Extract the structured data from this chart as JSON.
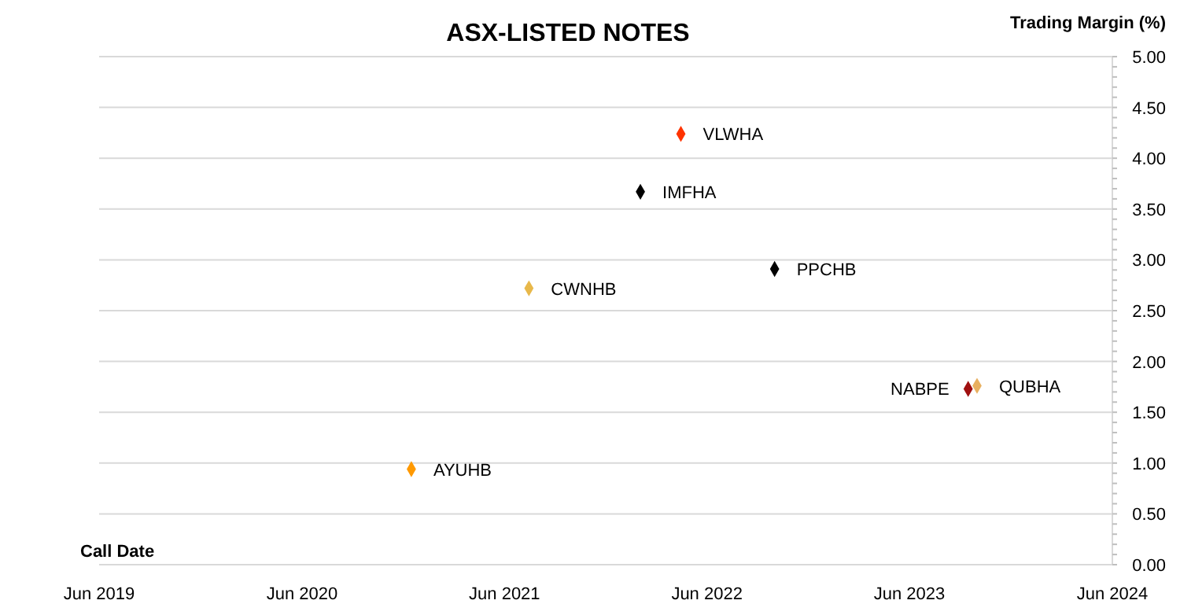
{
  "chart_data": {
    "type": "scatter",
    "title": "ASX-LISTED NOTES",
    "xlabel": "Call Date",
    "ylabel": "Trading Margin (%)",
    "marker": "diamond",
    "grid": "y",
    "xlim": [
      "2019-06",
      "2024-06"
    ],
    "xticks": [
      {
        "value": "2019-06",
        "label": "Jun 2019"
      },
      {
        "value": "2020-06",
        "label": "Jun 2020"
      },
      {
        "value": "2021-06",
        "label": "Jun 2021"
      },
      {
        "value": "2022-06",
        "label": "Jun 2022"
      },
      {
        "value": "2023-06",
        "label": "Jun 2023"
      },
      {
        "value": "2024-06",
        "label": "Jun 2024"
      }
    ],
    "ylim": [
      0,
      5
    ],
    "yticks": [
      {
        "value": 0,
        "label": "0.00"
      },
      {
        "value": 0.5,
        "label": "0.50"
      },
      {
        "value": 1,
        "label": "1.00"
      },
      {
        "value": 1.5,
        "label": "1.50"
      },
      {
        "value": 2,
        "label": "2.00"
      },
      {
        "value": 2.5,
        "label": "2.50"
      },
      {
        "value": 3,
        "label": "3.00"
      },
      {
        "value": 3.5,
        "label": "3.50"
      },
      {
        "value": 4,
        "label": "4.00"
      },
      {
        "value": 4.5,
        "label": "4.50"
      },
      {
        "value": 5,
        "label": "5.00"
      }
    ],
    "series": [
      {
        "name": "VLWHA",
        "color": "#ff3300",
        "x": [
          "2022-04-15"
        ],
        "values": [
          4.24
        ]
      },
      {
        "name": "IMFHA",
        "color": "#000000",
        "x": [
          "2022-02-01"
        ],
        "values": [
          3.67
        ]
      },
      {
        "name": "PPCHB",
        "color": "#000000",
        "x": [
          "2022-10-01"
        ],
        "values": [
          2.91
        ]
      },
      {
        "name": "CWNHB",
        "color": "#e8b84a",
        "x": [
          "2021-07-15"
        ],
        "values": [
          2.72
        ]
      },
      {
        "name": "NABPE",
        "color": "#a01010",
        "x": [
          "2023-09-15"
        ],
        "values": [
          1.73
        ]
      },
      {
        "name": "QUBHA",
        "color": "#e8b060",
        "x": [
          "2023-10-01"
        ],
        "values": [
          1.76
        ]
      },
      {
        "name": "AYUHB",
        "color": "#ff9900",
        "x": [
          "2020-12-15"
        ],
        "values": [
          0.94
        ]
      }
    ]
  }
}
